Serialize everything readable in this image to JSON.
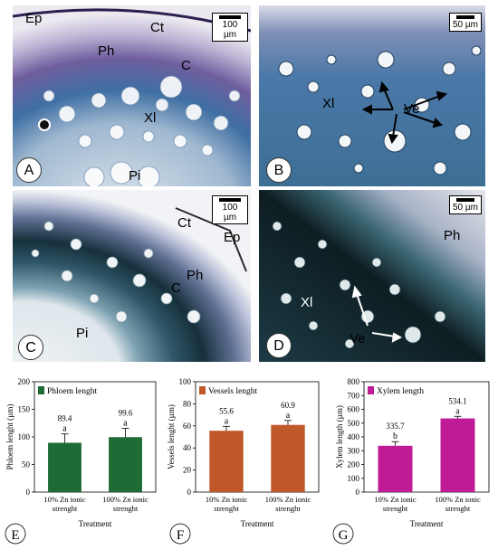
{
  "figure": {
    "panels": [
      {
        "id": "A",
        "label": "A",
        "scale": "100 µm",
        "annotations": [
          "Ep",
          "Ct",
          "Ph",
          "C",
          "Xl",
          "Pi"
        ]
      },
      {
        "id": "B",
        "label": "B",
        "scale": "50 µm",
        "annotations": [
          "Xl",
          "Ve"
        ]
      },
      {
        "id": "C",
        "label": "C",
        "scale": "100 µm",
        "annotations": [
          "Ct",
          "Ep",
          "Ph",
          "C",
          "Pi"
        ]
      },
      {
        "id": "D",
        "label": "D",
        "scale": "50 µm",
        "annotations": [
          "Ph",
          "Xl",
          "Ve"
        ]
      }
    ],
    "colors": {
      "phloem": "#1e6b35",
      "vessels": "#c0582a",
      "xylem": "#c01b97",
      "tissue_light": "#c9d6e6",
      "tissue_stain": "#2d4f82",
      "tissue_dark": "#0f1c22"
    }
  },
  "chart_data": [
    {
      "panel": "E",
      "type": "bar",
      "legend": "Phloem lenght",
      "ylabel": "Phloem lenght (µm)",
      "xlabel": "Treatment",
      "categories": [
        "10% Zn ionic strenght",
        "100% Zn ionic strenght"
      ],
      "values": [
        89.4,
        99.6
      ],
      "errors": [
        16,
        16
      ],
      "value_labels": [
        "89.4",
        "99.6"
      ],
      "letters": [
        "a",
        "a"
      ],
      "ylim": [
        0,
        200
      ],
      "yticks": [
        "0",
        "50",
        "100",
        "150",
        "200"
      ],
      "color": "#1e6b35"
    },
    {
      "panel": "F",
      "type": "bar",
      "legend": "Vessels lenght",
      "ylabel": "Vessels lenght (µm)",
      "xlabel": "Treatment",
      "categories": [
        "10% Zn ionic strenght",
        "100% Zn ionic strenght"
      ],
      "values": [
        55.6,
        60.9
      ],
      "errors": [
        4,
        4
      ],
      "value_labels": [
        "55.6",
        "60.9"
      ],
      "letters": [
        "a",
        "a"
      ],
      "ylim": [
        0,
        100
      ],
      "yticks": [
        "0",
        "20",
        "40",
        "60",
        "80",
        "100"
      ],
      "color": "#c0582a"
    },
    {
      "panel": "G",
      "type": "bar",
      "legend": "Xylem length",
      "ylabel": "Xylem length (µm)",
      "xlabel": "Treatment",
      "categories": [
        "10% Zn ionic strenght",
        "100% Zn ionic strenght"
      ],
      "values": [
        335.7,
        534.1
      ],
      "errors": [
        30,
        15
      ],
      "value_labels": [
        "335.7",
        "534.1"
      ],
      "letters": [
        "b",
        "a"
      ],
      "ylim": [
        0,
        800
      ],
      "yticks": [
        "0",
        "100",
        "200",
        "300",
        "400",
        "500",
        "600",
        "700",
        "800"
      ],
      "color": "#c01b97"
    }
  ]
}
